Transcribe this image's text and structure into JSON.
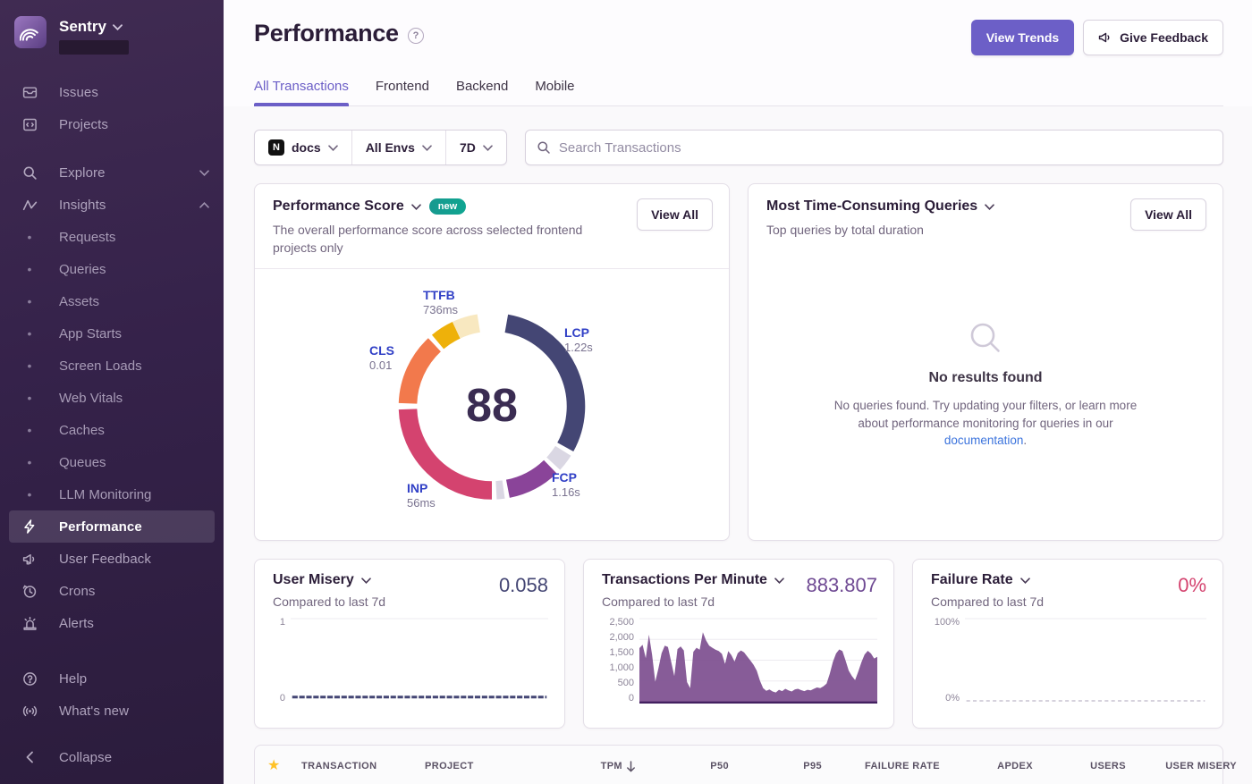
{
  "sidebar": {
    "org": "Sentry",
    "items_top": [
      {
        "label": "Issues"
      },
      {
        "label": "Projects"
      }
    ],
    "explore": {
      "label": "Explore"
    },
    "insights": {
      "label": "Insights"
    },
    "insights_items": [
      {
        "label": "Requests"
      },
      {
        "label": "Queries"
      },
      {
        "label": "Assets"
      },
      {
        "label": "App Starts"
      },
      {
        "label": "Screen Loads"
      },
      {
        "label": "Web Vitals"
      },
      {
        "label": "Caches"
      },
      {
        "label": "Queues"
      },
      {
        "label": "LLM Monitoring"
      }
    ],
    "items_bottom": [
      {
        "label": "Performance",
        "active": true
      },
      {
        "label": "User Feedback"
      },
      {
        "label": "Crons"
      },
      {
        "label": "Alerts"
      }
    ],
    "items_footer": [
      {
        "label": "Help"
      },
      {
        "label": "What's new"
      }
    ],
    "collapse": "Collapse"
  },
  "header": {
    "title": "Performance",
    "buttons": {
      "view_trends": "View Trends",
      "give_feedback": "Give Feedback"
    }
  },
  "tabs": {
    "active": "All Transactions",
    "items": [
      {
        "label": "All Transactions"
      },
      {
        "label": "Frontend"
      },
      {
        "label": "Backend"
      },
      {
        "label": "Mobile"
      }
    ]
  },
  "filters": {
    "project": "docs",
    "project_platform": "N",
    "env": "All Envs",
    "period": "7D",
    "search_placeholder": "Search Transactions"
  },
  "cards": {
    "performance_score": {
      "title": "Performance Score",
      "badge": "new",
      "description": "The overall performance score across selected frontend projects only",
      "view_all": "View All"
    },
    "queries": {
      "title": "Most Time-Consuming Queries",
      "subtitle": "Top queries by total duration",
      "view_all": "View All",
      "empty_title": "No results found",
      "empty_text": "No queries found. Try updating your filters, or learn more about performance monitoring for queries in our ",
      "empty_link": "documentation",
      "empty_suffix": "."
    },
    "user_misery": {
      "title": "User Misery",
      "subtitle": "Compared to last 7d",
      "value": "0.058"
    },
    "tpm": {
      "title": "Transactions Per Minute",
      "subtitle": "Compared to last 7d",
      "value": "883.807"
    },
    "failure_rate": {
      "title": "Failure Rate",
      "subtitle": "Compared to last 7d",
      "value": "0%"
    }
  },
  "table": {
    "columns": [
      "TRANSACTION",
      "PROJECT",
      "TPM",
      "P50",
      "P95",
      "FAILURE RATE",
      "APDEX",
      "USERS",
      "USER MISERY"
    ]
  },
  "colors": {
    "accent": "#6C5FC7",
    "sidebar_bg": "#35224A",
    "link": "#3C74DD",
    "star": "#FFC227"
  },
  "chart_data": [
    {
      "type": "donut",
      "title": "Performance Score",
      "score": "88",
      "vitals": [
        {
          "label": "TTFB",
          "value": "736ms"
        },
        {
          "label": "LCP",
          "value": "1.22s"
        },
        {
          "label": "FCP",
          "value": "1.16s"
        },
        {
          "label": "INP",
          "value": "56ms"
        },
        {
          "label": "CLS",
          "value": "0.01"
        }
      ],
      "arcs": [
        {
          "name": "lcp",
          "start": 10,
          "end": 119,
          "color": "#444674"
        },
        {
          "name": "filler-1",
          "start": 122,
          "end": 133,
          "color": "#DAD7E3"
        },
        {
          "name": "fcp",
          "start": 136,
          "end": 169,
          "color": "#8A4499"
        },
        {
          "name": "filler-2",
          "start": 172,
          "end": 177,
          "color": "#DAD7E3"
        },
        {
          "name": "inp",
          "start": 180,
          "end": 268,
          "color": "#D4436F"
        },
        {
          "name": "cls",
          "start": 272,
          "end": 317,
          "color": "#F2794C"
        },
        {
          "name": "ttfb",
          "start": 320,
          "end": 335,
          "color": "#EEB10A"
        },
        {
          "name": "ttfb-rest",
          "start": 335,
          "end": 351,
          "color": "#F8E8C0"
        }
      ]
    },
    {
      "type": "line",
      "title": "User Misery",
      "ylim": [
        0,
        1
      ],
      "yticks": [
        "1",
        "0"
      ],
      "value": 0.058,
      "color": "#444674",
      "dashed": false
    },
    {
      "type": "area",
      "title": "Transactions Per Minute",
      "ylim": [
        0,
        2500
      ],
      "yticks": [
        "2,500",
        "2,000",
        "1,500",
        "1,000",
        "500",
        "0"
      ],
      "color": "#7D4E8F",
      "baseline_color": "#432060",
      "values": [
        1650,
        1750,
        1350,
        2050,
        1450,
        650,
        1050,
        1500,
        1720,
        1680,
        1250,
        820,
        1620,
        1700,
        1580,
        640,
        460,
        1540,
        1660,
        1600,
        2120,
        1880,
        1720,
        1660,
        1600,
        1560,
        1480,
        1180,
        1560,
        1440,
        1250,
        1500,
        1580,
        1520,
        1400,
        1280,
        1150,
        980,
        680,
        460,
        380,
        420,
        360,
        330,
        410,
        370,
        440,
        390,
        360,
        420,
        440,
        400,
        370,
        410,
        390,
        440,
        480,
        460,
        510,
        590,
        880,
        1240,
        1490,
        1610,
        1560,
        1280,
        980,
        820,
        700,
        950,
        1230,
        1460,
        1570,
        1490,
        1340,
        1390
      ]
    },
    {
      "type": "line",
      "title": "Failure Rate",
      "ylim": [
        0,
        100
      ],
      "yticks": [
        "100%",
        "0%"
      ],
      "value": 0,
      "color": "#C9C3D2",
      "dashed": true
    }
  ]
}
